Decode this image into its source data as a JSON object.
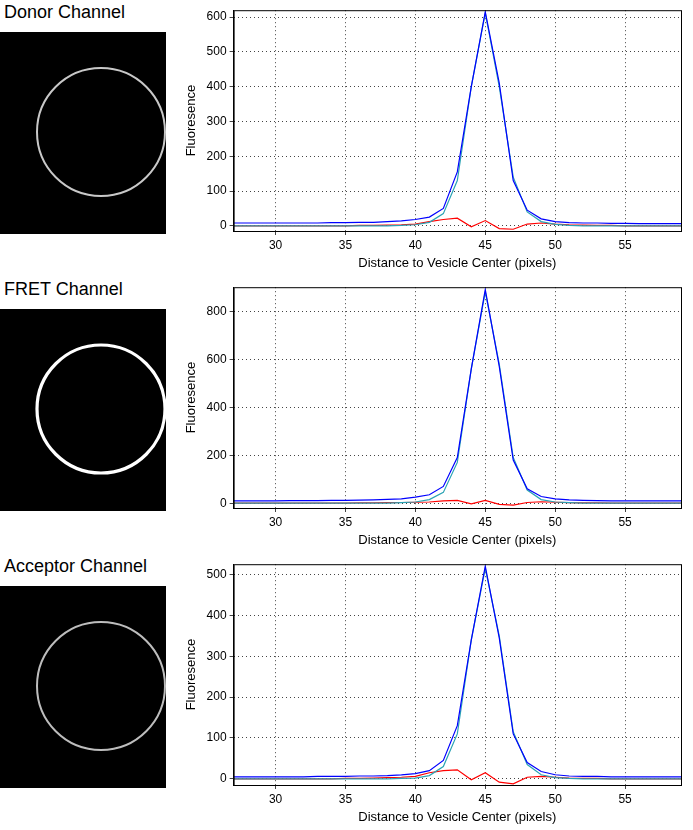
{
  "chart_data": [
    {
      "type": "line",
      "title": "Donor Channel",
      "xlabel": "Distance to Vesicle Center (pixels)",
      "ylabel": "Fluoresence",
      "x": [
        27,
        28,
        29,
        30,
        31,
        32,
        33,
        34,
        35,
        36,
        37,
        38,
        39,
        40,
        41,
        42,
        43,
        44,
        45,
        46,
        47,
        48,
        49,
        50,
        51,
        52,
        53,
        54,
        55,
        56,
        57,
        58,
        59
      ],
      "xlim": [
        27,
        59
      ],
      "xticks": [
        30,
        35,
        40,
        45,
        50,
        55
      ],
      "ylim": [
        -15,
        620
      ],
      "yticks": [
        0,
        100,
        200,
        300,
        400,
        500,
        600
      ],
      "grid": true,
      "series": [
        {
          "color": "#0000ff",
          "values": [
            8,
            8,
            8,
            8,
            8,
            8,
            8,
            9,
            9,
            10,
            10,
            12,
            14,
            18,
            25,
            50,
            155,
            400,
            615,
            410,
            130,
            45,
            20,
            12,
            9,
            8,
            8,
            7,
            7,
            6,
            6,
            6,
            6
          ]
        },
        {
          "color": "#2aa3b4",
          "values": [
            0,
            0,
            0,
            0,
            0,
            0,
            0,
            0,
            0,
            0,
            0,
            0,
            1,
            3,
            10,
            35,
            130,
            400,
            612,
            400,
            140,
            40,
            12,
            4,
            1,
            0,
            0,
            0,
            0,
            0,
            0,
            0,
            0
          ]
        },
        {
          "color": "#ff0000",
          "values": [
            0,
            0,
            0,
            0,
            0,
            0,
            0,
            0,
            0,
            1,
            1,
            2,
            3,
            5,
            12,
            18,
            22,
            -3,
            15,
            -8,
            -10,
            5,
            8,
            5,
            3,
            2,
            1,
            1,
            0,
            0,
            0,
            0,
            0
          ]
        }
      ]
    },
    {
      "type": "line",
      "title": "FRET Channel",
      "xlabel": "Distance to Vesicle Center (pixels)",
      "ylabel": "Fluoresence",
      "x": [
        27,
        28,
        29,
        30,
        31,
        32,
        33,
        34,
        35,
        36,
        37,
        38,
        39,
        40,
        41,
        42,
        43,
        44,
        45,
        46,
        47,
        48,
        49,
        50,
        51,
        52,
        53,
        54,
        55,
        56,
        57,
        58,
        59
      ],
      "xlim": [
        27,
        59
      ],
      "xticks": [
        30,
        35,
        40,
        45,
        50,
        55
      ],
      "ylim": [
        -20,
        900
      ],
      "yticks": [
        0,
        200,
        400,
        600,
        800
      ],
      "grid": true,
      "series": [
        {
          "color": "#0000ff",
          "values": [
            10,
            10,
            10,
            10,
            11,
            11,
            11,
            12,
            12,
            13,
            14,
            16,
            18,
            25,
            35,
            70,
            190,
            560,
            890,
            570,
            180,
            60,
            28,
            18,
            14,
            12,
            11,
            10,
            10,
            10,
            10,
            10,
            10
          ]
        },
        {
          "color": "#2aa3b4",
          "values": [
            0,
            0,
            0,
            0,
            0,
            0,
            0,
            0,
            0,
            0,
            0,
            0,
            2,
            5,
            15,
            45,
            170,
            560,
            880,
            580,
            190,
            55,
            15,
            5,
            2,
            0,
            0,
            0,
            0,
            0,
            0,
            0,
            0
          ]
        },
        {
          "color": "#ff0000",
          "values": [
            0,
            0,
            0,
            0,
            0,
            0,
            0,
            0,
            0,
            1,
            1,
            2,
            3,
            4,
            5,
            10,
            12,
            -3,
            12,
            -5,
            -8,
            3,
            6,
            4,
            2,
            1,
            1,
            0,
            0,
            0,
            0,
            0,
            0
          ]
        }
      ]
    },
    {
      "type": "line",
      "title": "Acceptor Channel",
      "xlabel": "Distance to Vesicle Center (pixels)",
      "ylabel": "Fluoresence",
      "x": [
        27,
        28,
        29,
        30,
        31,
        32,
        33,
        34,
        35,
        36,
        37,
        38,
        39,
        40,
        41,
        42,
        43,
        44,
        45,
        46,
        47,
        48,
        49,
        50,
        51,
        52,
        53,
        54,
        55,
        56,
        57,
        58,
        59
      ],
      "xlim": [
        27,
        59
      ],
      "xticks": [
        30,
        35,
        40,
        45,
        50,
        55
      ],
      "ylim": [
        -15,
        525
      ],
      "yticks": [
        0,
        100,
        200,
        300,
        400,
        500
      ],
      "grid": true,
      "series": [
        {
          "color": "#0000ff",
          "values": [
            5,
            5,
            5,
            5,
            5,
            5,
            6,
            6,
            6,
            7,
            7,
            8,
            10,
            13,
            20,
            45,
            130,
            340,
            520,
            345,
            110,
            40,
            18,
            10,
            7,
            6,
            6,
            5,
            5,
            5,
            5,
            5,
            5
          ]
        },
        {
          "color": "#2aa3b4",
          "values": [
            0,
            0,
            0,
            0,
            0,
            0,
            0,
            0,
            0,
            0,
            0,
            0,
            1,
            2,
            8,
            30,
            110,
            340,
            515,
            350,
            115,
            35,
            10,
            3,
            1,
            0,
            0,
            0,
            0,
            0,
            0,
            0,
            0
          ]
        },
        {
          "color": "#ff0000",
          "values": [
            0,
            0,
            0,
            0,
            0,
            0,
            0,
            0,
            1,
            1,
            2,
            3,
            4,
            6,
            15,
            20,
            22,
            -2,
            15,
            -8,
            -12,
            4,
            6,
            4,
            2,
            1,
            1,
            0,
            0,
            0,
            0,
            0,
            0
          ]
        }
      ]
    }
  ]
}
